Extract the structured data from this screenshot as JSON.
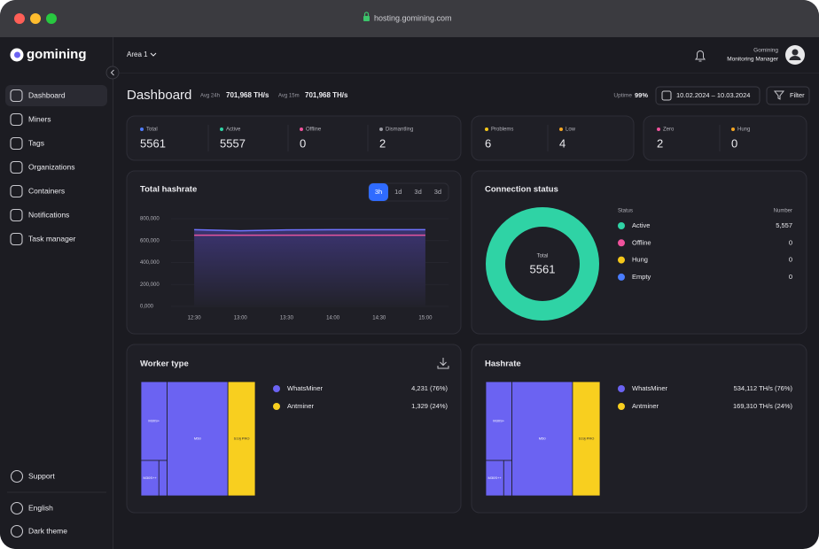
{
  "browser": {
    "url": "hosting.gomining.com"
  },
  "sidebar": {
    "logo": "gomining",
    "nav": [
      "Dashboard",
      "Miners",
      "Tags",
      "Organizations",
      "Containers",
      "Notifications",
      "Task manager"
    ],
    "active": 0,
    "bottom": [
      "Support",
      "English",
      "Dark theme"
    ]
  },
  "topbar": {
    "area": "Area 1",
    "user_name": "Gomining",
    "user_role": "Monitoring Manager"
  },
  "header": {
    "title": "Dashboard",
    "avg_24h_label": "Avg 24h",
    "avg_24h_value": "701,968 TH/s",
    "avg_15m_label": "Avg 15m",
    "avg_15m_value": "701,968 TH/s",
    "uptime_label": "Uptime",
    "uptime_value": "99%",
    "date_range": "10.02.2024 – 10.03.2024",
    "filter": "Filter"
  },
  "stats": [
    [
      {
        "label": "Total",
        "value": 5561,
        "color": "#4f7cff"
      },
      {
        "label": "Active",
        "value": 5557,
        "color": "#2fd3a5"
      },
      {
        "label": "Offline",
        "value": 0,
        "color": "#f0529c"
      },
      {
        "label": "Dismantling",
        "value": 2,
        "color": "#9a9aa3"
      }
    ],
    [
      {
        "label": "Problems",
        "value": 6,
        "color": "#f5c71a"
      },
      {
        "label": "Low",
        "value": 4,
        "color": "#f5a623"
      }
    ],
    [
      {
        "label": "Zero",
        "value": 2,
        "color": "#f0529c"
      },
      {
        "label": "Hung",
        "value": 0,
        "color": "#f5a623"
      }
    ]
  ],
  "hashrate_chart": {
    "type": "line",
    "title": "Total hashrate",
    "tabs": [
      "3h",
      "1d",
      "3d",
      "3d"
    ],
    "active_tab": 0,
    "x": [
      "12:30",
      "13:00",
      "13:30",
      "14:00",
      "14:30",
      "15:00"
    ],
    "series": [
      {
        "color": "#6f73ff",
        "area": true,
        "values": [
          700000,
          690000,
          698000,
          700000,
          700000,
          700000
        ]
      },
      {
        "color": "#e4559f",
        "values": [
          650000,
          650000,
          650000,
          650000,
          650000,
          650000
        ]
      }
    ],
    "ylim": [
      0,
      800000
    ],
    "yticks": [
      {
        "value": 0,
        "label": "0,000"
      },
      {
        "value": 200000,
        "label": "200,000"
      },
      {
        "value": 400000,
        "label": "400,000"
      },
      {
        "value": 600000,
        "label": "600,000"
      },
      {
        "value": 800000,
        "label": "800,000"
      }
    ],
    "grid": true
  },
  "connection_chart": {
    "type": "donut",
    "title": "Connection status",
    "center_label": "Total",
    "center_value": 5561,
    "legend_header": [
      "Status",
      "Number"
    ],
    "categories": [
      "Active",
      "Offline",
      "Hung",
      "Empty"
    ],
    "values": [
      5557,
      0,
      0,
      0
    ],
    "value_labels": [
      "5,557",
      "0",
      "0",
      "0"
    ],
    "colors": [
      "#2fd3a5",
      "#f0529c",
      "#f5c71a",
      "#4a7dff"
    ]
  },
  "worker_chart": {
    "type": "treemap",
    "title": "Worker type",
    "categories": [
      "WhatsMiner",
      "Antminer"
    ],
    "values": [
      4231,
      1329
    ],
    "value_labels": [
      "4,231 (76%)",
      "1,329 (24%)"
    ],
    "colors": [
      "#6b63f2",
      "#f8cf1f"
    ],
    "tiles": [
      {
        "group": 0,
        "label": "M50",
        "value": 2961
      },
      {
        "group": 0,
        "label": "M30S+",
        "value": 876
      },
      {
        "group": 0,
        "label": null,
        "value": 124
      },
      {
        "group": 0,
        "label": "M30S++",
        "value": 270
      },
      {
        "group": 1,
        "label": "S19j PRO",
        "value": 1329
      }
    ]
  },
  "hashrate_treemap": {
    "type": "treemap",
    "title": "Hashrate",
    "categories": [
      "WhatsMiner",
      "Antminer"
    ],
    "values": [
      534112,
      169310
    ],
    "value_labels": [
      "534,112 TH/s (76%)",
      "169,310 TH/s (24%)"
    ],
    "colors": [
      "#6b63f2",
      "#f8cf1f"
    ],
    "tiles": [
      {
        "group": 0,
        "label": "M50",
        "value": 373878
      },
      {
        "group": 0,
        "label": "M30S+",
        "value": 110561
      },
      {
        "group": 0,
        "label": null,
        "value": 15489
      },
      {
        "group": 0,
        "label": "M30S++",
        "value": 34184
      },
      {
        "group": 1,
        "label": "S19j PRO",
        "value": 169310
      }
    ]
  }
}
